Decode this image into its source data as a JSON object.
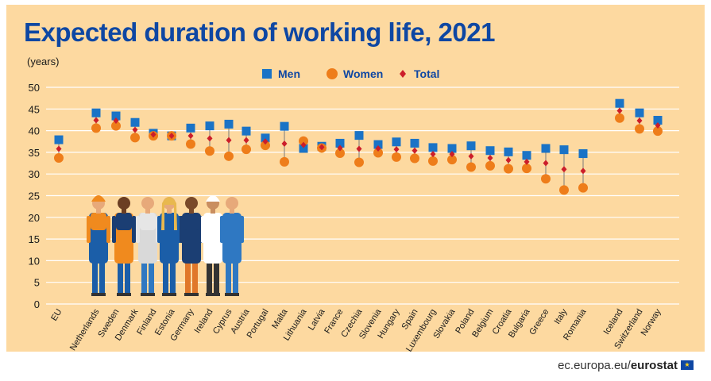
{
  "chart_data": {
    "type": "scatter",
    "title": "Expected duration of working life, 2021",
    "ylabel": "(years)",
    "ylim": [
      0,
      50
    ],
    "yticks": [
      0,
      5,
      10,
      15,
      20,
      25,
      30,
      35,
      40,
      45,
      50
    ],
    "grid": true,
    "legend": "top",
    "categories": [
      "EU",
      "Netherlands",
      "Sweden",
      "Denmark",
      "Finland",
      "Estonia",
      "Germany",
      "Ireland",
      "Cyprus",
      "Austria",
      "Portugal",
      "Malta",
      "Lithuania",
      "Latvia",
      "France",
      "Czechia",
      "Slovenia",
      "Hungary",
      "Spain",
      "Luxembourg",
      "Slovakia",
      "Poland",
      "Belgium",
      "Croatia",
      "Bulgaria",
      "Greece",
      "Italy",
      "Romania",
      "Iceland",
      "Switzerland",
      "Norway"
    ],
    "series": [
      {
        "name": "Men",
        "marker": "square",
        "color": "#1A73C6",
        "values": [
          37.9,
          44.1,
          43.4,
          41.9,
          39.4,
          38.8,
          40.6,
          41.1,
          41.5,
          39.9,
          38.3,
          41.0,
          35.9,
          36.4,
          37.1,
          38.9,
          36.8,
          37.4,
          37.1,
          36.1,
          35.9,
          36.5,
          35.4,
          35.1,
          34.3,
          35.9,
          35.6,
          34.7,
          46.3,
          44.1,
          42.4
        ]
      },
      {
        "name": "Women",
        "marker": "circle",
        "color": "#EE7D1A",
        "values": [
          33.7,
          40.6,
          41.1,
          38.4,
          38.8,
          38.8,
          36.9,
          35.3,
          34.1,
          35.7,
          36.6,
          32.8,
          37.6,
          36.0,
          34.8,
          32.7,
          34.9,
          33.9,
          33.6,
          33.0,
          33.3,
          31.6,
          31.9,
          31.2,
          31.3,
          28.9,
          26.3,
          26.8,
          42.9,
          40.4,
          39.9
        ]
      },
      {
        "name": "Total",
        "marker": "diamond",
        "color": "#CC1E2A",
        "values": [
          35.8,
          42.4,
          42.3,
          40.2,
          39.1,
          38.8,
          38.8,
          38.2,
          37.8,
          37.8,
          37.5,
          37.0,
          36.7,
          36.2,
          36.0,
          35.8,
          35.9,
          35.7,
          35.4,
          34.6,
          34.6,
          34.1,
          33.7,
          33.2,
          32.8,
          32.5,
          31.1,
          30.7,
          44.6,
          42.3,
          41.2
        ]
      }
    ]
  },
  "footer": {
    "site": "ec.europa.eu/",
    "brand": "eurostat"
  },
  "colors": {
    "background": "#FDD9A0",
    "title": "#0E47A3",
    "grid": "#FFFFFF"
  }
}
